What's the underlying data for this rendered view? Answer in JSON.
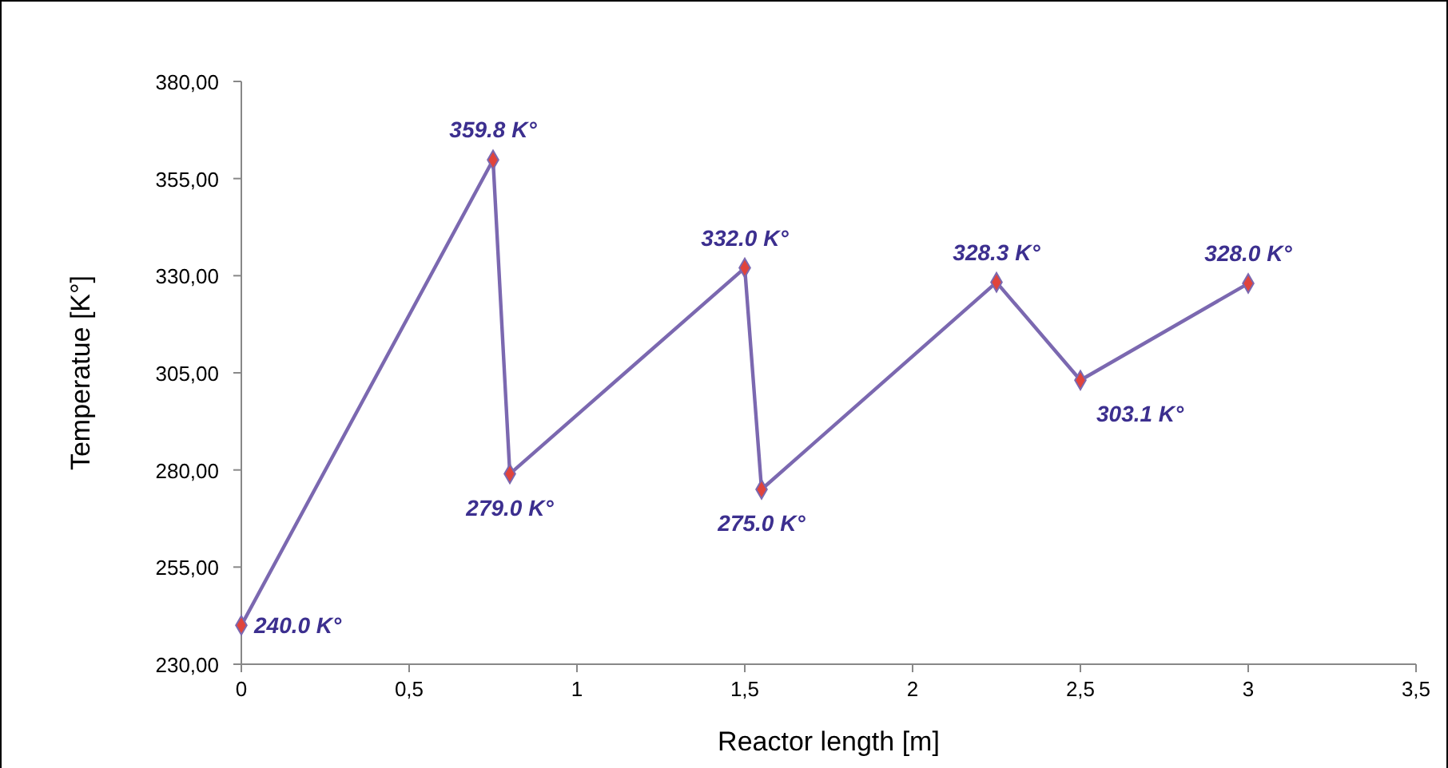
{
  "chart_data": {
    "type": "line",
    "xlabel": "Reactor length [m]",
    "ylabel": "Temperatue [K°]",
    "x": [
      0,
      0.75,
      0.8,
      1.5,
      1.55,
      2.25,
      2.5,
      3
    ],
    "series": [
      {
        "color": "#7b68b0",
        "values": [
          240,
          359.8,
          279,
          332,
          275,
          328.3,
          303.1,
          328
        ],
        "value_labels": [
          "240.0 K°",
          "359.8 K°",
          "279.0 K°",
          "332.0 K°",
          "275.0 K°",
          "328.3 K°",
          "303.1 K°",
          "328.0 K°"
        ]
      }
    ],
    "xlim": [
      0,
      3.5
    ],
    "xticks": [
      0,
      {
        "value": 0.5,
        "label": "0,5"
      },
      1,
      {
        "value": 1.5,
        "label": "1,5"
      },
      2,
      {
        "value": 2.5,
        "label": "2,5"
      },
      3,
      {
        "value": 3.5,
        "label": "3,5"
      }
    ],
    "ylim": [
      230,
      380
    ],
    "yticks": [
      {
        "value": 230,
        "label": "230,00"
      },
      {
        "value": 255,
        "label": "255,00"
      },
      {
        "value": 280,
        "label": "280,00"
      },
      {
        "value": 305,
        "label": "305,00"
      },
      {
        "value": 330,
        "label": "330,00"
      },
      {
        "value": 355,
        "label": "355,00"
      },
      {
        "value": 380,
        "label": "380,00"
      }
    ],
    "marker": "diamond",
    "line_style": "solid",
    "grid": false
  }
}
